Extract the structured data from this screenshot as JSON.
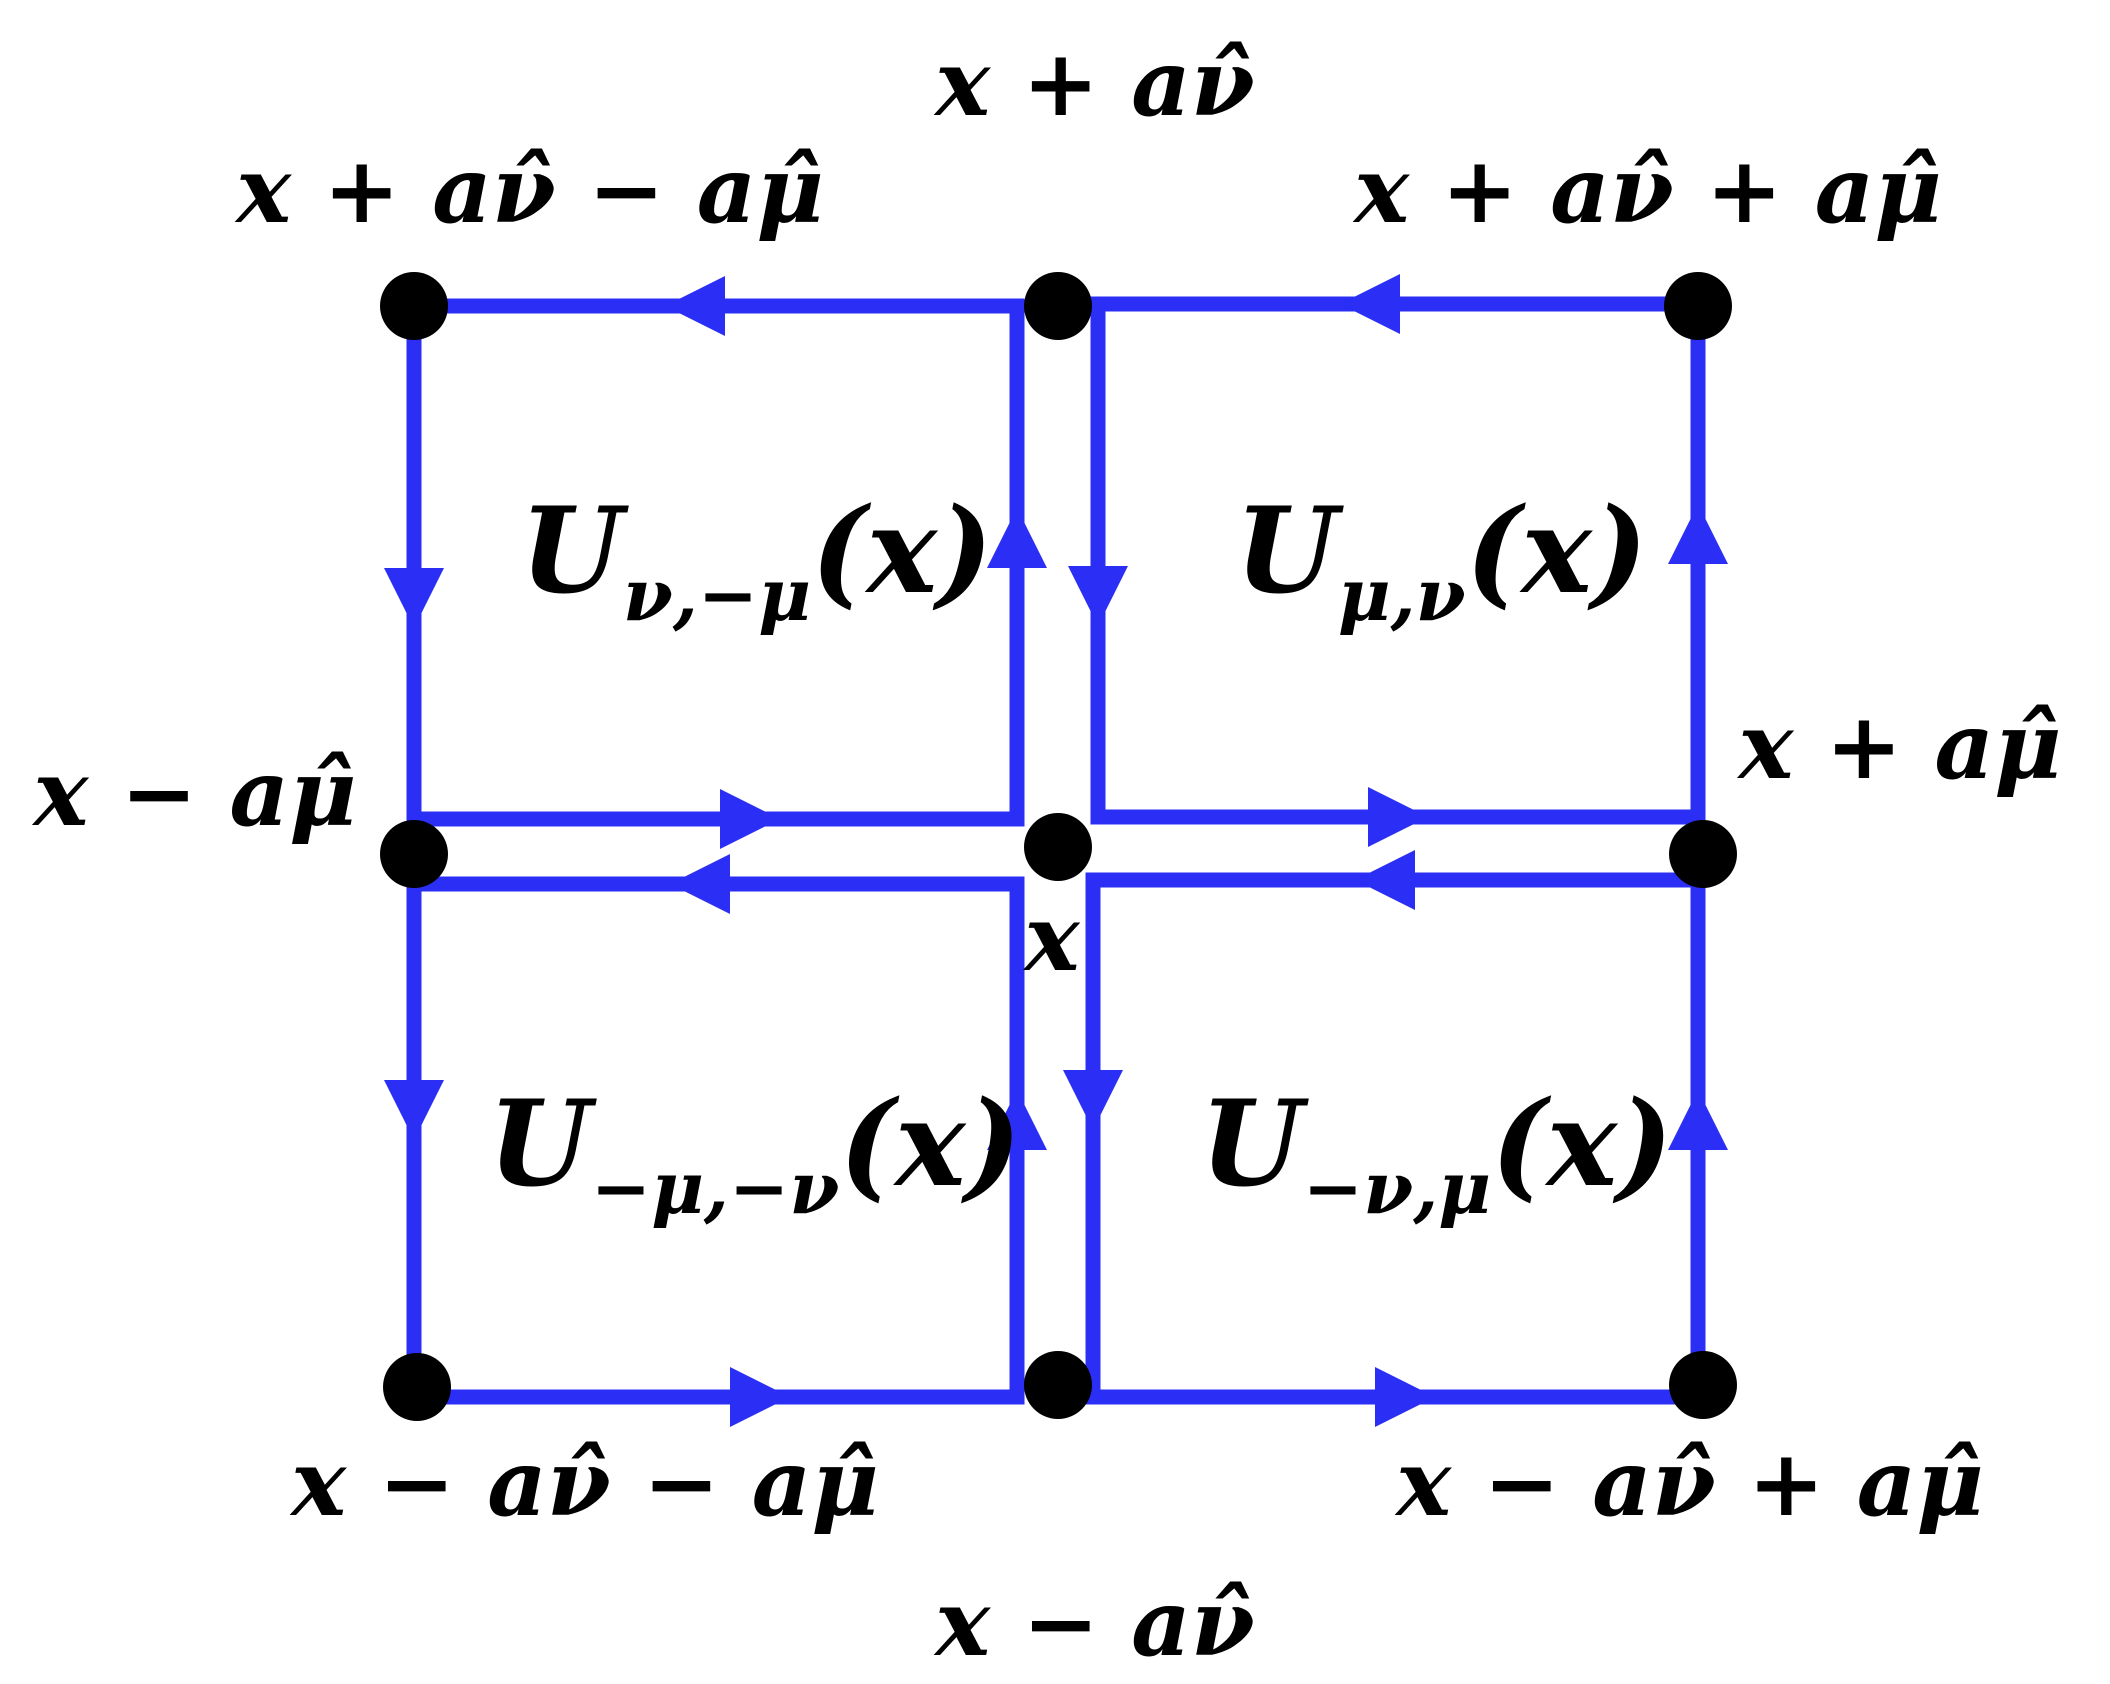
{
  "colors": {
    "link": "#2b2ff5",
    "node": "#000000",
    "text": "#000000"
  },
  "nodes": {
    "top_left": "x + aν̂ − aμ̂",
    "top_mid": "x + aν̂",
    "top_right": "x + aν̂ + aμ̂",
    "mid_left": "x − aμ̂",
    "center": "x",
    "mid_right": "x + aμ̂",
    "bot_left": "x − aν̂ − aμ̂",
    "bot_mid": "x − aν̂",
    "bot_right": "x − aν̂ + aμ̂"
  },
  "plaquettes": {
    "top_left": {
      "symbol": "U",
      "subscript": "ν,−μ",
      "arg": "(x)"
    },
    "top_right": {
      "symbol": "U",
      "subscript": "μ,ν",
      "arg": "(x)"
    },
    "bot_left": {
      "symbol": "U",
      "subscript": "−μ,−ν",
      "arg": "(x)"
    },
    "bot_right": {
      "symbol": "U",
      "subscript": "−ν,μ",
      "arg": "(x)"
    }
  }
}
